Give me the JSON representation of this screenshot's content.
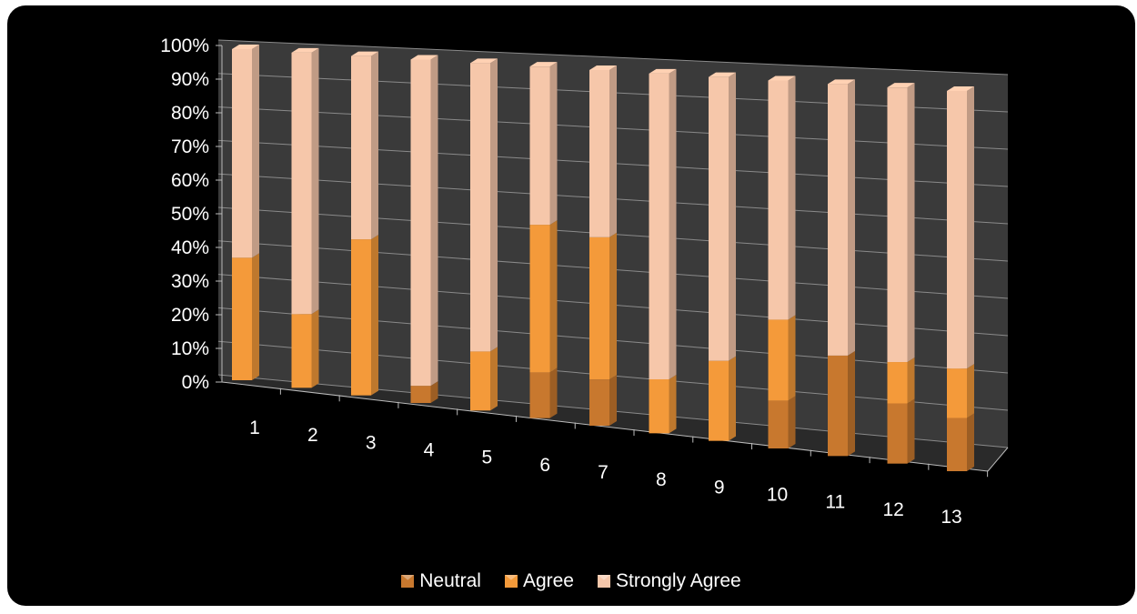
{
  "chart_data": {
    "type": "bar",
    "stacked": true,
    "percent": true,
    "three_d": true,
    "categories": [
      "1",
      "2",
      "3",
      "4",
      "5",
      "6",
      "7",
      "8",
      "9",
      "10",
      "11",
      "12",
      "13"
    ],
    "series": [
      {
        "name": "Neutral",
        "color": "#C8782E",
        "values": [
          0,
          0,
          0,
          5,
          0,
          13,
          13,
          0,
          0,
          13,
          27,
          16,
          14
        ]
      },
      {
        "name": "Agree",
        "color": "#F49A3A",
        "values": [
          37,
          22,
          46,
          0,
          17,
          42,
          40,
          15,
          22,
          22,
          0,
          11,
          13
        ]
      },
      {
        "name": "Strongly Agree",
        "color": "#F6C7AA",
        "values": [
          63,
          78,
          54,
          95,
          83,
          45,
          47,
          85,
          78,
          65,
          73,
          73,
          73
        ]
      }
    ],
    "y_ticks": [
      "0%",
      "10%",
      "20%",
      "30%",
      "40%",
      "50%",
      "60%",
      "70%",
      "80%",
      "90%",
      "100%"
    ],
    "ylim": [
      0,
      100
    ],
    "grid": true,
    "legend_position": "bottom"
  }
}
